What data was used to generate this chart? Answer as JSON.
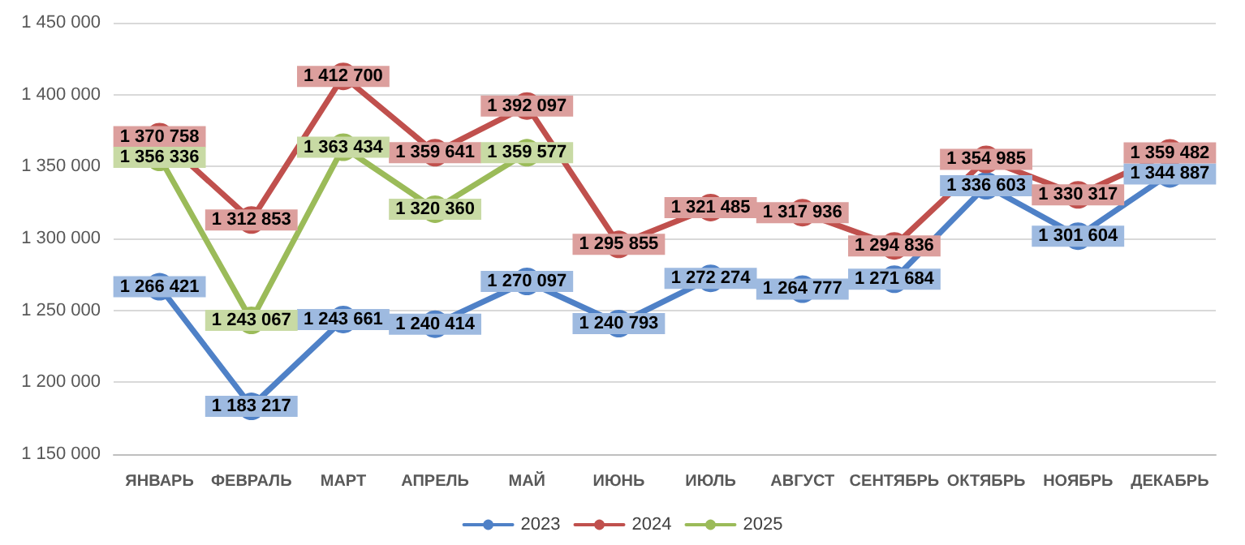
{
  "chart_data": {
    "type": "line",
    "categories": [
      "ЯНВАРЬ",
      "ФЕВРАЛЬ",
      "МАРТ",
      "АПРЕЛЬ",
      "МАЙ",
      "ИЮНЬ",
      "ИЮЛЬ",
      "АВГУСТ",
      "СЕНТЯБРЬ",
      "ОКТЯБРЬ",
      "НОЯБРЬ",
      "ДЕКАБРЬ"
    ],
    "series": [
      {
        "name": "2023",
        "color": "#4f81c7",
        "values": [
          1266421,
          1183217,
          1243661,
          1240414,
          1270097,
          1240793,
          1272274,
          1264777,
          1271684,
          1336603,
          1301604,
          1344887
        ]
      },
      {
        "name": "2024",
        "color": "#c0504d",
        "values": [
          1370758,
          1312853,
          1412700,
          1359641,
          1392097,
          1295855,
          1321485,
          1317936,
          1294836,
          1354985,
          1330317,
          1359482
        ]
      },
      {
        "name": "2025",
        "color": "#9bbb59",
        "values": [
          1356336,
          1243067,
          1363434,
          1320360,
          1359577,
          null,
          null,
          null,
          null,
          null,
          null,
          null
        ]
      }
    ],
    "ylim": [
      1150000,
      1450000
    ],
    "yticks": [
      {
        "value": 1150000,
        "label": "1 150 000"
      },
      {
        "value": 1200000,
        "label": "1 200 000"
      },
      {
        "value": 1250000,
        "label": "1 250 000"
      },
      {
        "value": 1300000,
        "label": "1 300 000"
      },
      {
        "value": 1350000,
        "label": "1 350 000"
      },
      {
        "value": 1400000,
        "label": "1 400 000"
      },
      {
        "value": 1450000,
        "label": "1 450 000"
      }
    ],
    "grid": "y",
    "legend": "bottom",
    "marker": "circle",
    "line_style": "solid",
    "data_labels": true
  }
}
